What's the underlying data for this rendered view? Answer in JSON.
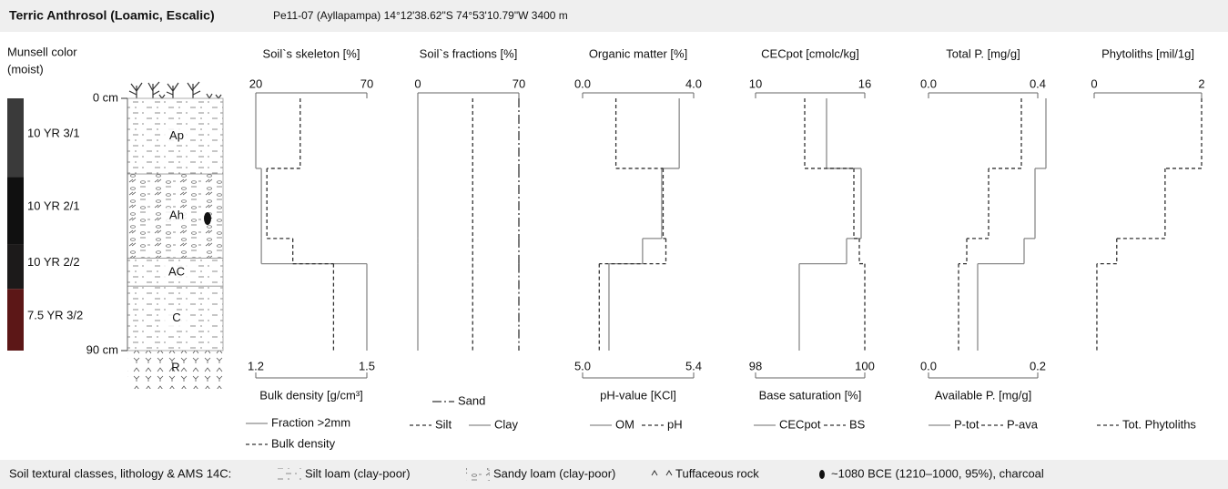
{
  "header": {
    "title": "Terric Anthrosol (Loamic, Escalic)",
    "subtitle": "Pe11-07 (Ayllapampa) 14°12'38.62\"S 74°53'10.79\"W 3400 m"
  },
  "profile": {
    "label_line1": "Munsell color",
    "label_line2": "(moist)",
    "ylim": [
      0,
      90
    ],
    "yticks": [
      {
        "value": 0,
        "label": "0 cm"
      },
      {
        "value": 90,
        "label": "90 cm"
      }
    ],
    "layers": [
      0,
      25,
      50,
      59,
      90
    ],
    "munsell": [
      {
        "label": "10 YR 3/1",
        "color": "#3a3a3a",
        "top": 0,
        "bottom": 28
      },
      {
        "label": "10 YR 2/1",
        "color": "#101010",
        "top": 28,
        "bottom": 52
      },
      {
        "label": "10 YR 2/2",
        "color": "#1c1a1a",
        "top": 52,
        "bottom": 68
      },
      {
        "label": "7.5 YR 3/2",
        "color": "#5c1717",
        "top": 68,
        "bottom": 90
      }
    ],
    "horizons": [
      {
        "label": "Ap",
        "top": 0,
        "bottom": 27
      },
      {
        "label": "Ah",
        "top": 27,
        "bottom": 57
      },
      {
        "label": "AC",
        "top": 57,
        "bottom": 67
      },
      {
        "label": "C",
        "top": 67,
        "bottom": 90
      }
    ],
    "bedrock": "R"
  },
  "chart_data": [
    {
      "type": "step",
      "title": "Soil`s skeleton [%]",
      "xlim": [
        20,
        70
      ],
      "xticks": [
        20,
        70
      ],
      "x2lim": [
        1.2,
        1.5
      ],
      "x2ticks": [
        1.2,
        1.5
      ],
      "x2label": "Bulk density [g/cm³]",
      "series": [
        {
          "name": "Fraction >2mm",
          "color": "#8a8a8a",
          "style": "solid",
          "values": [
            20,
            22.5,
            22.5,
            70
          ]
        },
        {
          "name": "Bulk density",
          "color": "#333333",
          "style": "dashed",
          "axis": "x2",
          "values": [
            1.32,
            1.23,
            1.3,
            1.41
          ]
        }
      ]
    },
    {
      "type": "step",
      "title": "Soil`s fractions [%]",
      "xlim": [
        0,
        70
      ],
      "xticks": [
        0,
        70
      ],
      "series": [
        {
          "name": "Sand",
          "color": "#333333",
          "style": "longdash",
          "values": [
            70,
            70,
            70,
            70
          ]
        },
        {
          "name": "Silt",
          "color": "#333333",
          "style": "dashed",
          "values": [
            38,
            38,
            38,
            38
          ]
        },
        {
          "name": "Clay",
          "color": "#8a8a8a",
          "style": "solid",
          "values": [
            0,
            0,
            0,
            0
          ]
        }
      ]
    },
    {
      "type": "step",
      "title": "Organic matter [%]",
      "xlim": [
        0,
        4
      ],
      "xticks": [
        {
          "value": 0,
          "label": "0.0"
        },
        {
          "value": 4,
          "label": "4.0"
        }
      ],
      "x2lim": [
        5,
        5.4
      ],
      "x2ticks": [
        {
          "value": 5,
          "label": "5.0"
        },
        5.4
      ],
      "x2label": "pH-value [KCl]",
      "series": [
        {
          "name": "OM",
          "color": "#8a8a8a",
          "style": "solid",
          "values": [
            3.48,
            2.85,
            2.16,
            0.95
          ]
        },
        {
          "name": "pH",
          "color": "#333333",
          "style": "dashed",
          "axis": "x2",
          "values": [
            5.12,
            5.29,
            5.3,
            5.06
          ]
        }
      ]
    },
    {
      "type": "step",
      "title": "CECpot [cmolc/kg]",
      "xlim": [
        10,
        16
      ],
      "xticks": [
        10,
        16
      ],
      "x2lim": [
        98,
        100
      ],
      "x2ticks": [
        98,
        100
      ],
      "x2label": "Base saturation [%]",
      "series": [
        {
          "name": "CECpot",
          "color": "#8a8a8a",
          "style": "solid",
          "values": [
            13.9,
            15.8,
            15,
            12.4
          ]
        },
        {
          "name": "BS",
          "color": "#333333",
          "style": "dashed",
          "axis": "x2",
          "values": [
            98.9,
            99.8,
            99.9,
            100
          ]
        }
      ]
    },
    {
      "type": "step",
      "title": "Total P. [mg/g]",
      "xlim": [
        0,
        0.4
      ],
      "xticks": [
        {
          "value": 0,
          "label": "0.0"
        },
        0.4
      ],
      "x2lim": [
        0,
        0.2
      ],
      "x2ticks": [
        {
          "value": 0,
          "label": "0.0"
        },
        0.2
      ],
      "x2label": "Available P. [mg/g]",
      "series": [
        {
          "name": "P-tot",
          "color": "#8a8a8a",
          "style": "solid",
          "values": [
            0.43,
            0.39,
            0.35,
            0.18
          ]
        },
        {
          "name": "P-ava",
          "color": "#333333",
          "style": "dashed",
          "axis": "x2",
          "values": [
            0.17,
            0.11,
            0.07,
            0.055
          ]
        }
      ]
    },
    {
      "type": "step",
      "title": "Phytoliths [mil/1g]",
      "xlim": [
        0,
        2
      ],
      "xticks": [
        0,
        2
      ],
      "series": [
        {
          "name": "Tot. Phytoliths",
          "color": "#333333",
          "style": "dashed",
          "values": [
            2,
            1.32,
            0.42,
            0.05
          ]
        }
      ]
    }
  ],
  "footer": {
    "title": "Soil textural classes, lithology & AMS 14C:",
    "items": [
      "Silt loam (clay-poor)",
      "Sandy loam (clay-poor)",
      "Tuffaceous rock",
      "~1080 BCE (1210–1000, 95%), charcoal"
    ]
  }
}
